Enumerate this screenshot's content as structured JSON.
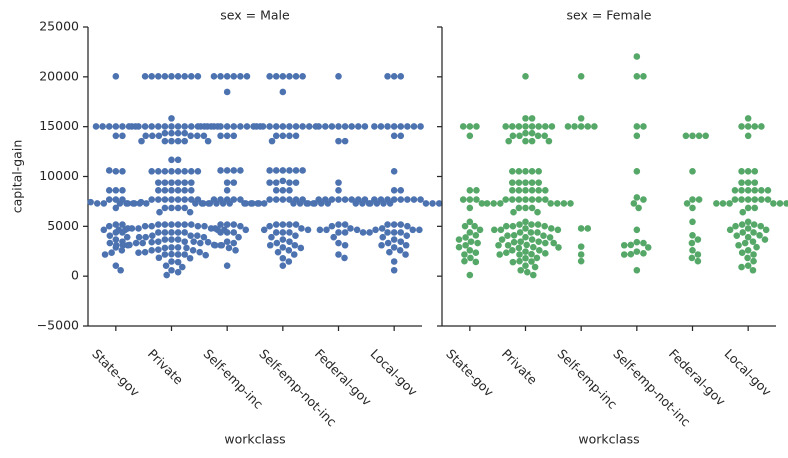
{
  "chart_data": [
    {
      "type": "swarm",
      "title": "sex = Male",
      "x_label": "workclass",
      "y_label": "capital-gain",
      "color": "#4c72b0",
      "ylim": [
        -5000,
        25000
      ],
      "yticks": [
        {
          "value": -5000,
          "label": "−5000"
        },
        0,
        5000,
        10000,
        15000,
        20000,
        25000
      ],
      "categories": [
        "State-gov",
        "Private",
        "Self-emp-inc",
        "Self-emp-not-inc",
        "Federal-gov",
        "Local-gov"
      ],
      "values": [
        [
          20051,
          15024,
          15024,
          15024,
          15024,
          15024,
          15024,
          15024,
          14084,
          14084,
          10520,
          10520,
          10605,
          8614,
          8614,
          8614,
          7688,
          7688,
          7688,
          7298,
          7298,
          7298,
          7298,
          7430,
          7430,
          6849,
          5178,
          5178,
          5013,
          4787,
          4650,
          4386,
          4386,
          4064,
          3908,
          3674,
          3464,
          3325,
          3103,
          2885,
          2597,
          2354,
          2174,
          1055,
          594
        ],
        [
          20051,
          20051,
          20051,
          20051,
          20051,
          20051,
          20051,
          20051,
          20051,
          15831,
          15024,
          15024,
          15024,
          15024,
          15024,
          15024,
          15024,
          15024,
          15024,
          15024,
          15024,
          15024,
          15024,
          15024,
          14344,
          14344,
          14344,
          14344,
          14084,
          14084,
          14084,
          14084,
          14084,
          14084,
          13550,
          13550,
          13550,
          13550,
          13550,
          13550,
          11678,
          11678,
          10520,
          10520,
          10520,
          10520,
          10520,
          10520,
          10520,
          10520,
          9386,
          9386,
          9386,
          9386,
          9386,
          9386,
          8614,
          8614,
          8614,
          8614,
          8614,
          8614,
          7688,
          7688,
          7688,
          7688,
          7688,
          7688,
          7688,
          7688,
          7298,
          7298,
          7298,
          7298,
          7298,
          7298,
          7298,
          7298,
          7298,
          7298,
          6849,
          6849,
          6849,
          6849,
          6418,
          6418,
          5178,
          5178,
          5178,
          5178,
          5178,
          5178,
          5013,
          5013,
          5013,
          5013,
          4787,
          4787,
          4787,
          4650,
          4650,
          4650,
          4650,
          4386,
          4386,
          4386,
          4386,
          4386,
          4064,
          4064,
          4064,
          3908,
          3908,
          3908,
          3674,
          3674,
          3674,
          3464,
          3464,
          3464,
          3411,
          3411,
          3325,
          3325,
          3325,
          3137,
          3137,
          3103,
          3103,
          3103,
          2885,
          2885,
          2829,
          2829,
          2653,
          2597,
          2597,
          2407,
          2407,
          2354,
          2202,
          2176,
          2174,
          2174,
          2105,
          1848,
          1797,
          1471,
          1409,
          1055,
          914,
          594,
          401,
          114
        ],
        [
          20051,
          20051,
          20051,
          20051,
          20051,
          20051,
          18481,
          15024,
          15024,
          15024,
          15024,
          15024,
          15024,
          15024,
          15024,
          15024,
          15024,
          14084,
          14084,
          14084,
          10605,
          10605,
          10605,
          10605,
          9386,
          9386,
          8614,
          7688,
          7688,
          7688,
          7688,
          7688,
          7298,
          7298,
          7298,
          7298,
          7298,
          7298,
          5178,
          5178,
          5178,
          5013,
          4787,
          4650,
          4386,
          4386,
          4386,
          3908,
          3464,
          3325,
          3103,
          3103,
          2829,
          2597,
          1055
        ],
        [
          20051,
          20051,
          20051,
          20051,
          20051,
          20051,
          18481,
          15024,
          15024,
          15024,
          15024,
          15024,
          15024,
          15024,
          15024,
          15024,
          15024,
          14084,
          14084,
          14084,
          14084,
          13550,
          10605,
          10605,
          10605,
          10605,
          10605,
          10605,
          9562,
          9386,
          9386,
          9386,
          9386,
          8614,
          8614,
          8614,
          7688,
          7688,
          7688,
          7688,
          7688,
          7688,
          7298,
          7298,
          7298,
          7298,
          7298,
          7298,
          7298,
          7298,
          5178,
          5178,
          5178,
          5178,
          5013,
          4787,
          4650,
          4650,
          4386,
          4386,
          4386,
          4064,
          3908,
          3674,
          3464,
          3325,
          3103,
          3103,
          2885,
          2829,
          2597,
          2407,
          2174,
          1797,
          1471,
          1055
        ],
        [
          20051,
          15024,
          15024,
          15024,
          15024,
          15024,
          15024,
          15024,
          15024,
          13550,
          13550,
          9386,
          8614,
          7688,
          7688,
          7688,
          7688,
          7688,
          7688,
          7688,
          7688,
          7298,
          7298,
          7298,
          7298,
          7298,
          7298,
          7298,
          7298,
          5178,
          5178,
          5013,
          4787,
          4650,
          4650,
          4650,
          4386,
          4386,
          4386,
          3908,
          3325,
          3103,
          2174,
          1831
        ],
        [
          20051,
          20051,
          20051,
          15024,
          15024,
          15024,
          15024,
          15024,
          15024,
          15024,
          15024,
          14084,
          14084,
          10520,
          8614,
          8614,
          7688,
          7688,
          7688,
          7688,
          7688,
          7688,
          7688,
          7688,
          7298,
          7298,
          7298,
          7298,
          7298,
          7298,
          5178,
          5178,
          5178,
          5013,
          4787,
          4650,
          4650,
          4650,
          4386,
          4386,
          4386,
          4386,
          4064,
          3908,
          3674,
          3464,
          3325,
          3103,
          3103,
          2885,
          2597,
          2407,
          2174,
          1471,
          594
        ]
      ]
    },
    {
      "type": "swarm",
      "title": "sex = Female",
      "x_label": "workclass",
      "color": "#55a868",
      "ylim": [
        -5000,
        25000
      ],
      "categories": [
        "State-gov",
        "Private",
        "Self-emp-inc",
        "Self-emp-not-inc",
        "Federal-gov",
        "Local-gov"
      ],
      "values": [
        [
          15024,
          15024,
          15024,
          14084,
          8614,
          8614,
          7688,
          7688,
          7688,
          7298,
          6849,
          5455,
          5013,
          5013,
          4650,
          4386,
          4101,
          3887,
          3674,
          3464,
          3325,
          3103,
          2907,
          2597,
          2354,
          2174,
          1831,
          1506,
          1424,
          114
        ],
        [
          20051,
          15831,
          15831,
          15024,
          15024,
          15024,
          15024,
          15024,
          15024,
          15024,
          15024,
          14344,
          14344,
          14084,
          14084,
          14084,
          14084,
          13550,
          13550,
          13550,
          13550,
          10520,
          10520,
          10520,
          10520,
          10520,
          9386,
          9386,
          9386,
          9386,
          9386,
          8614,
          8614,
          8614,
          8614,
          8614,
          8614,
          7688,
          7688,
          7688,
          7688,
          7688,
          7688,
          7688,
          7298,
          7298,
          7298,
          7298,
          7298,
          7298,
          7298,
          6849,
          6849,
          6849,
          6418,
          6418,
          5455,
          5178,
          5178,
          5178,
          5013,
          5013,
          5013,
          4787,
          4787,
          4650,
          4650,
          4650,
          4386,
          4386,
          4386,
          4101,
          4064,
          4064,
          3908,
          3887,
          3674,
          3674,
          3464,
          3464,
          3411,
          3325,
          3325,
          3137,
          3103,
          3103,
          2907,
          2885,
          2829,
          2597,
          2597,
          2463,
          2354,
          2290,
          2202,
          2174,
          2174,
          1831,
          1797,
          1506,
          1471,
          1409,
          1055,
          914,
          594,
          401,
          114
        ],
        [
          20051,
          15831,
          15024,
          15024,
          15024,
          15024,
          15024,
          4787,
          4787,
          2964,
          2174,
          1506
        ],
        [
          22040,
          20051,
          20051,
          15024,
          15024,
          14084,
          10520,
          7896,
          7688,
          7298,
          6849,
          4650,
          3411,
          3325,
          3137,
          3103,
          2885,
          2463,
          2290,
          2202,
          2174,
          594
        ],
        [
          14084,
          14084,
          14084,
          14084,
          10520,
          7688,
          7688,
          7298,
          6849,
          5455,
          4101,
          3674,
          3325,
          2597,
          2174,
          1831,
          1506
        ],
        [
          15831,
          15024,
          15024,
          15024,
          15024,
          14084,
          10520,
          10520,
          10520,
          9386,
          9386,
          9386,
          8614,
          8614,
          8614,
          8614,
          8614,
          8614,
          7688,
          7688,
          7688,
          7688,
          7688,
          7688,
          7298,
          7298,
          7298,
          7298,
          7298,
          7298,
          6849,
          6849,
          6418,
          5455,
          5178,
          5178,
          5013,
          5013,
          4787,
          4650,
          4650,
          4386,
          4386,
          4101,
          4064,
          3908,
          3674,
          3464,
          3325,
          3103,
          2907,
          2597,
          2354,
          2174,
          1831,
          1506,
          1055,
          914,
          594
        ]
      ]
    }
  ]
}
